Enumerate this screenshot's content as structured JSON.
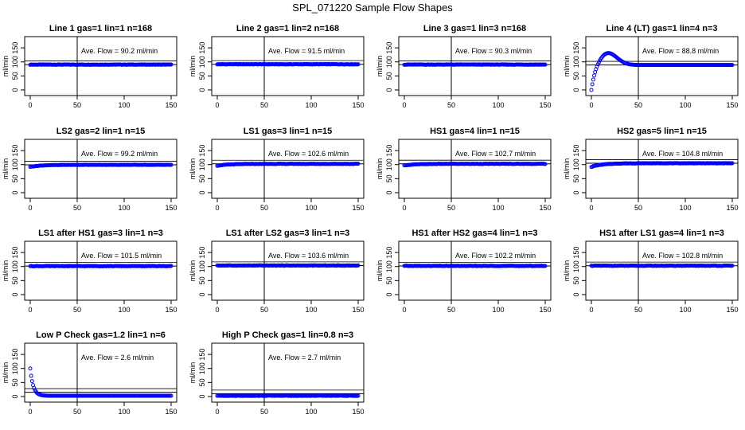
{
  "figure_title": "SPL_071220  Sample Flow Shapes",
  "colors": {
    "points": "#0000ff",
    "axis": "#000000",
    "background": "#ffffff"
  },
  "chart_data": [
    {
      "type": "scatter",
      "title": "Line 1 gas=1 lin=1 n=168",
      "ylabel": "ml/min",
      "xlabel": "",
      "xlim": [
        0,
        150
      ],
      "ylim": [
        -20,
        190
      ],
      "xticks": [
        0,
        50,
        100,
        150
      ],
      "yticks": [
        0,
        50,
        100,
        150
      ],
      "vline_x": 50,
      "hline_y": 90.2,
      "annotation": "Ave. Flow =  90.2  ml/min",
      "shape": "flat",
      "level": 90.2
    },
    {
      "type": "scatter",
      "title": "Line 2 gas=1 lin=2 n=168",
      "ylabel": "ml/min",
      "xlabel": "",
      "xlim": [
        0,
        150
      ],
      "ylim": [
        -20,
        190
      ],
      "xticks": [
        0,
        50,
        100,
        150
      ],
      "yticks": [
        0,
        50,
        100,
        150
      ],
      "vline_x": 50,
      "hline_y": 91.5,
      "annotation": "Ave. Flow =  91.5  ml/min",
      "shape": "flat",
      "level": 91.5
    },
    {
      "type": "scatter",
      "title": "Line 3 gas=1 lin=3 n=168",
      "ylabel": "ml/min",
      "xlabel": "",
      "xlim": [
        0,
        150
      ],
      "ylim": [
        -20,
        190
      ],
      "xticks": [
        0,
        50,
        100,
        150
      ],
      "yticks": [
        0,
        50,
        100,
        150
      ],
      "vline_x": 50,
      "hline_y": 90.3,
      "annotation": "Ave. Flow =  90.3  ml/min",
      "shape": "flat",
      "level": 90.3
    },
    {
      "type": "scatter",
      "title": "Line 4 (LT) gas=1 lin=4 n=3",
      "ylabel": "ml/min",
      "xlabel": "",
      "xlim": [
        0,
        150
      ],
      "ylim": [
        -20,
        190
      ],
      "xticks": [
        0,
        50,
        100,
        150
      ],
      "yticks": [
        0,
        50,
        100,
        150
      ],
      "vline_x": 50,
      "hline_y": 88.8,
      "annotation": "Ave. Flow =  88.8  ml/min",
      "shape": "overshoot",
      "level": 88.8,
      "peak": 120,
      "peak_x": 17
    },
    {
      "type": "scatter",
      "title": "LS2 gas=2 lin=1 n=15",
      "ylabel": "ml/min",
      "xlabel": "",
      "xlim": [
        0,
        150
      ],
      "ylim": [
        -20,
        190
      ],
      "xticks": [
        0,
        50,
        100,
        150
      ],
      "yticks": [
        0,
        50,
        100,
        150
      ],
      "vline_x": 50,
      "hline_y": 99.2,
      "annotation": "Ave. Flow =  99.2  ml/min",
      "shape": "rise",
      "level": 99.2,
      "start": 92
    },
    {
      "type": "scatter",
      "title": "LS1 gas=3 lin=1 n=15",
      "ylabel": "ml/min",
      "xlabel": "",
      "xlim": [
        0,
        150
      ],
      "ylim": [
        -20,
        190
      ],
      "xticks": [
        0,
        50,
        100,
        150
      ],
      "yticks": [
        0,
        50,
        100,
        150
      ],
      "vline_x": 50,
      "hline_y": 102.6,
      "annotation": "Ave. Flow =  102.6  ml/min",
      "shape": "rise",
      "level": 102.6,
      "start": 96
    },
    {
      "type": "scatter",
      "title": "HS1 gas=4 lin=1 n=15",
      "ylabel": "ml/min",
      "xlabel": "",
      "xlim": [
        0,
        150
      ],
      "ylim": [
        -20,
        190
      ],
      "xticks": [
        0,
        50,
        100,
        150
      ],
      "yticks": [
        0,
        50,
        100,
        150
      ],
      "vline_x": 50,
      "hline_y": 102.7,
      "annotation": "Ave. Flow =  102.7  ml/min",
      "shape": "rise",
      "level": 102.7,
      "start": 97
    },
    {
      "type": "scatter",
      "title": "HS2 gas=5 lin=1 n=15",
      "ylabel": "ml/min",
      "xlabel": "",
      "xlim": [
        0,
        150
      ],
      "ylim": [
        -20,
        190
      ],
      "xticks": [
        0,
        50,
        100,
        150
      ],
      "yticks": [
        0,
        50,
        100,
        150
      ],
      "vline_x": 50,
      "hline_y": 104.8,
      "annotation": "Ave. Flow =  104.8  ml/min",
      "shape": "rise",
      "level": 104.8,
      "start": 92
    },
    {
      "type": "scatter",
      "title": "LS1 after HS1 gas=3 lin=1 n=3",
      "ylabel": "ml/min",
      "xlabel": "",
      "xlim": [
        0,
        150
      ],
      "ylim": [
        -20,
        190
      ],
      "xticks": [
        0,
        50,
        100,
        150
      ],
      "yticks": [
        0,
        50,
        100,
        150
      ],
      "vline_x": 50,
      "hline_y": 101.5,
      "annotation": "Ave. Flow =  101.5  ml/min",
      "shape": "flat",
      "level": 101.5
    },
    {
      "type": "scatter",
      "title": "LS1 after LS2 gas=3 lin=1 n=3",
      "ylabel": "ml/min",
      "xlabel": "",
      "xlim": [
        0,
        150
      ],
      "ylim": [
        -20,
        190
      ],
      "xticks": [
        0,
        50,
        100,
        150
      ],
      "yticks": [
        0,
        50,
        100,
        150
      ],
      "vline_x": 50,
      "hline_y": 103.6,
      "annotation": "Ave. Flow =  103.6  ml/min",
      "shape": "flat",
      "level": 103.6
    },
    {
      "type": "scatter",
      "title": "HS1 after HS2 gas=4 lin=1 n=3",
      "ylabel": "ml/min",
      "xlabel": "",
      "xlim": [
        0,
        150
      ],
      "ylim": [
        -20,
        190
      ],
      "xticks": [
        0,
        50,
        100,
        150
      ],
      "yticks": [
        0,
        50,
        100,
        150
      ],
      "vline_x": 50,
      "hline_y": 102.2,
      "annotation": "Ave. Flow =  102.2  ml/min",
      "shape": "flat",
      "level": 102.2
    },
    {
      "type": "scatter",
      "title": "HS1 after LS1 gas=4 lin=1 n=3",
      "ylabel": "ml/min",
      "xlabel": "",
      "xlim": [
        0,
        150
      ],
      "ylim": [
        -20,
        190
      ],
      "xticks": [
        0,
        50,
        100,
        150
      ],
      "yticks": [
        0,
        50,
        100,
        150
      ],
      "vline_x": 50,
      "hline_y": 102.8,
      "annotation": "Ave. Flow =  102.8  ml/min",
      "shape": "flat",
      "level": 102.8
    },
    {
      "type": "scatter",
      "title": "Low P Check gas=1.2 lin=1 n=6",
      "ylabel": "ml/min",
      "xlabel": "",
      "xlim": [
        0,
        150
      ],
      "ylim": [
        -20,
        190
      ],
      "xticks": [
        0,
        50,
        100,
        150
      ],
      "yticks": [
        0,
        50,
        100,
        150
      ],
      "vline_x": 50,
      "hline_y": 15,
      "annotation": "Ave. Flow =  2.6  ml/min",
      "shape": "decay",
      "level": 2.6,
      "start": 100
    },
    {
      "type": "scatter",
      "title": "High P Check gas=1 lin=0.8 n=3",
      "ylabel": "ml/min",
      "xlabel": "",
      "xlim": [
        0,
        150
      ],
      "ylim": [
        -20,
        190
      ],
      "xticks": [
        0,
        50,
        100,
        150
      ],
      "yticks": [
        0,
        50,
        100,
        150
      ],
      "vline_x": 50,
      "hline_y": 10,
      "annotation": "Ave. Flow =  2.7  ml/min",
      "shape": "flat",
      "level": 2.7
    }
  ]
}
